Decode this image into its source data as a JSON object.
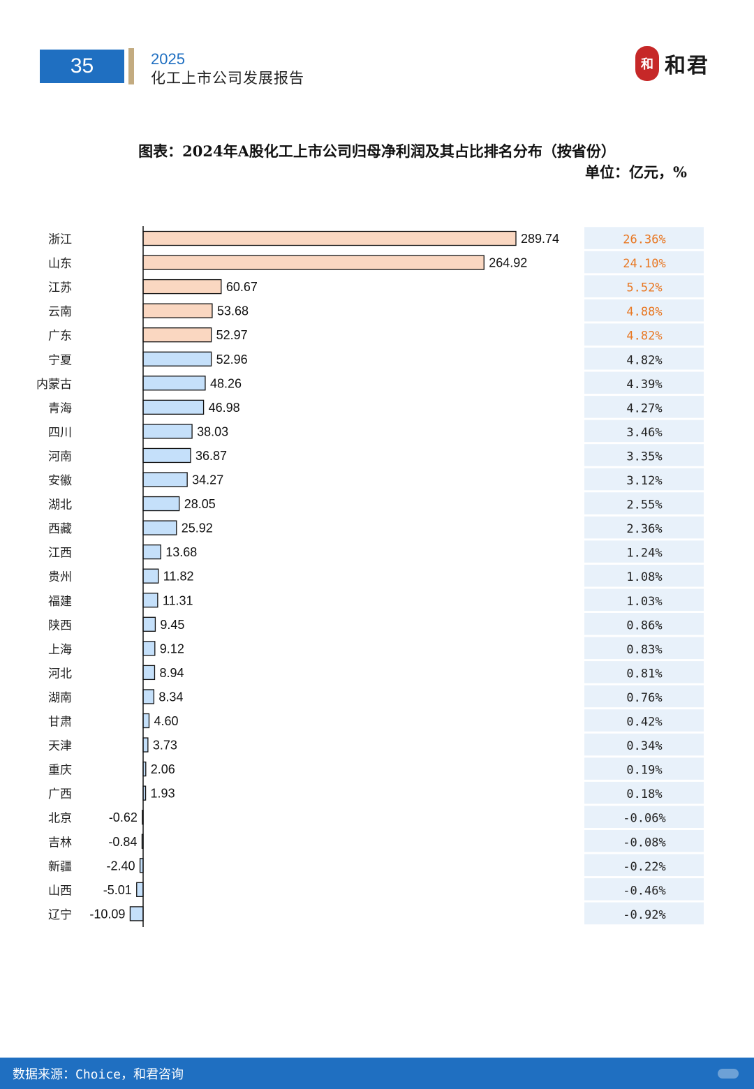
{
  "header": {
    "page_number": "35",
    "year": "2025",
    "title": "化工上市公司发展报告",
    "logo_seal": "和",
    "logo_text": "和君"
  },
  "chart_data": {
    "type": "bar",
    "orientation": "horizontal",
    "title": "图表：2024年A股化工上市公司归母净利润及其占比排名分布（按省份）",
    "unit": "单位：亿元，%",
    "categories": [
      "浙江",
      "山东",
      "江苏",
      "云南",
      "广东",
      "宁夏",
      "内蒙古",
      "青海",
      "四川",
      "河南",
      "安徽",
      "湖北",
      "西藏",
      "江西",
      "贵州",
      "福建",
      "陕西",
      "上海",
      "河北",
      "湖南",
      "甘肃",
      "天津",
      "重庆",
      "广西",
      "北京",
      "吉林",
      "新疆",
      "山西",
      "辽宁"
    ],
    "values": [
      289.74,
      264.92,
      60.67,
      53.68,
      52.97,
      52.96,
      48.26,
      46.98,
      38.03,
      36.87,
      34.27,
      28.05,
      25.92,
      13.68,
      11.82,
      11.31,
      9.45,
      9.12,
      8.94,
      8.34,
      4.6,
      3.73,
      2.06,
      1.93,
      -0.62,
      -0.84,
      -2.4,
      -5.01,
      -10.09
    ],
    "value_labels": [
      "289.74",
      "264.92",
      "60.67",
      "53.68",
      "52.97",
      "52.96",
      "48.26",
      "46.98",
      "38.03",
      "36.87",
      "34.27",
      "28.05",
      "25.92",
      "13.68",
      "11.82",
      "11.31",
      "9.45",
      "9.12",
      "8.94",
      "8.34",
      "4.60",
      "3.73",
      "2.06",
      "1.93",
      "-0.62",
      "-0.84",
      "-2.40",
      "-5.01",
      "-10.09"
    ],
    "shares": [
      "26.36%",
      "24.10%",
      "5.52%",
      "4.88%",
      "4.82%",
      "4.82%",
      "4.39%",
      "4.27%",
      "3.46%",
      "3.35%",
      "3.12%",
      "2.55%",
      "2.36%",
      "1.24%",
      "1.08%",
      "1.03%",
      "0.86%",
      "0.83%",
      "0.81%",
      "0.76%",
      "0.42%",
      "0.34%",
      "0.19%",
      "0.18%",
      "-0.06%",
      "-0.08%",
      "-0.22%",
      "-0.46%",
      "-0.92%"
    ],
    "highlight_top_n": 5,
    "xlim": [
      -10.09,
      289.74
    ],
    "colors": {
      "highlight_bar": "#fad7c1",
      "normal_bar": "#c5e0fa",
      "bar_border": "#111111",
      "highlight_share_text": "#e87722",
      "normal_share_text": "#222222",
      "share_cell_bg": "#e8f1fa"
    }
  },
  "footer": {
    "source": "数据来源：Choice，和君咨询"
  }
}
